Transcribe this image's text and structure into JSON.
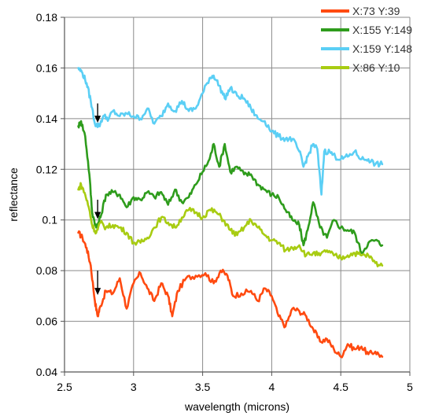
{
  "chart_data": {
    "type": "line",
    "title": "",
    "xlabel": "wavelength (microns)",
    "ylabel": "reflectance",
    "xlim": [
      2.5,
      5
    ],
    "ylim": [
      0.04,
      0.18
    ],
    "x_ticks": [
      "2.5",
      "3",
      "3.5",
      "4",
      "4.5",
      "5"
    ],
    "y_ticks": [
      "0.04",
      "0.06",
      "0.08",
      "0.1",
      "0.12",
      "0.14",
      "0.16",
      "0.18"
    ],
    "x_tick_values": [
      2.5,
      3,
      3.5,
      4,
      4.5,
      5
    ],
    "y_tick_values": [
      0.04,
      0.06,
      0.08,
      0.1,
      0.12,
      0.14,
      0.16,
      0.18
    ],
    "grid": true,
    "legend_position": "top-right",
    "series": [
      {
        "name": "X:73 Y:39",
        "color": "#ff4a10",
        "points": [
          [
            2.6,
            0.095
          ],
          [
            2.63,
            0.093
          ],
          [
            2.66,
            0.089
          ],
          [
            2.69,
            0.082
          ],
          [
            2.72,
            0.068
          ],
          [
            2.74,
            0.062
          ],
          [
            2.76,
            0.066
          ],
          [
            2.8,
            0.072
          ],
          [
            2.85,
            0.071
          ],
          [
            2.9,
            0.077
          ],
          [
            2.95,
            0.065
          ],
          [
            3.0,
            0.075
          ],
          [
            3.05,
            0.079
          ],
          [
            3.1,
            0.073
          ],
          [
            3.15,
            0.068
          ],
          [
            3.2,
            0.075
          ],
          [
            3.25,
            0.07
          ],
          [
            3.28,
            0.062
          ],
          [
            3.32,
            0.072
          ],
          [
            3.38,
            0.077
          ],
          [
            3.45,
            0.078
          ],
          [
            3.52,
            0.079
          ],
          [
            3.58,
            0.075
          ],
          [
            3.63,
            0.08
          ],
          [
            3.68,
            0.078
          ],
          [
            3.72,
            0.07
          ],
          [
            3.78,
            0.071
          ],
          [
            3.85,
            0.072
          ],
          [
            3.9,
            0.068
          ],
          [
            3.95,
            0.073
          ],
          [
            4.0,
            0.07
          ],
          [
            4.05,
            0.062
          ],
          [
            4.1,
            0.058
          ],
          [
            4.15,
            0.065
          ],
          [
            4.2,
            0.064
          ],
          [
            4.25,
            0.062
          ],
          [
            4.3,
            0.057
          ],
          [
            4.35,
            0.052
          ],
          [
            4.4,
            0.053
          ],
          [
            4.45,
            0.049
          ],
          [
            4.5,
            0.046
          ],
          [
            4.55,
            0.051
          ],
          [
            4.6,
            0.049
          ],
          [
            4.65,
            0.05
          ],
          [
            4.7,
            0.047
          ],
          [
            4.75,
            0.048
          ],
          [
            4.8,
            0.046
          ]
        ]
      },
      {
        "name": "X:155 Y:149",
        "color": "#2e9c1c",
        "points": [
          [
            2.6,
            0.137
          ],
          [
            2.62,
            0.139
          ],
          [
            2.65,
            0.133
          ],
          [
            2.68,
            0.118
          ],
          [
            2.7,
            0.103
          ],
          [
            2.73,
            0.097
          ],
          [
            2.76,
            0.101
          ],
          [
            2.8,
            0.11
          ],
          [
            2.85,
            0.111
          ],
          [
            2.9,
            0.11
          ],
          [
            2.95,
            0.105
          ],
          [
            3.0,
            0.109
          ],
          [
            3.05,
            0.108
          ],
          [
            3.1,
            0.111
          ],
          [
            3.15,
            0.109
          ],
          [
            3.2,
            0.111
          ],
          [
            3.25,
            0.106
          ],
          [
            3.3,
            0.112
          ],
          [
            3.35,
            0.107
          ],
          [
            3.4,
            0.109
          ],
          [
            3.45,
            0.114
          ],
          [
            3.5,
            0.119
          ],
          [
            3.55,
            0.124
          ],
          [
            3.58,
            0.13
          ],
          [
            3.62,
            0.121
          ],
          [
            3.66,
            0.13
          ],
          [
            3.7,
            0.119
          ],
          [
            3.75,
            0.121
          ],
          [
            3.8,
            0.118
          ],
          [
            3.85,
            0.118
          ],
          [
            3.9,
            0.114
          ],
          [
            3.95,
            0.112
          ],
          [
            4.0,
            0.11
          ],
          [
            4.05,
            0.109
          ],
          [
            4.1,
            0.104
          ],
          [
            4.15,
            0.1
          ],
          [
            4.2,
            0.098
          ],
          [
            4.23,
            0.09
          ],
          [
            4.26,
            0.096
          ],
          [
            4.3,
            0.107
          ],
          [
            4.35,
            0.097
          ],
          [
            4.4,
            0.093
          ],
          [
            4.45,
            0.1
          ],
          [
            4.5,
            0.097
          ],
          [
            4.55,
            0.096
          ],
          [
            4.6,
            0.095
          ],
          [
            4.65,
            0.087
          ],
          [
            4.7,
            0.091
          ],
          [
            4.75,
            0.092
          ],
          [
            4.8,
            0.09
          ]
        ]
      },
      {
        "name": "X:159 Y:148",
        "color": "#5bcff5",
        "points": [
          [
            2.6,
            0.16
          ],
          [
            2.63,
            0.158
          ],
          [
            2.66,
            0.154
          ],
          [
            2.69,
            0.147
          ],
          [
            2.72,
            0.138
          ],
          [
            2.75,
            0.137
          ],
          [
            2.78,
            0.141
          ],
          [
            2.82,
            0.14
          ],
          [
            2.85,
            0.143
          ],
          [
            2.9,
            0.141
          ],
          [
            2.95,
            0.142
          ],
          [
            3.0,
            0.141
          ],
          [
            3.05,
            0.14
          ],
          [
            3.1,
            0.144
          ],
          [
            3.15,
            0.138
          ],
          [
            3.2,
            0.141
          ],
          [
            3.25,
            0.146
          ],
          [
            3.3,
            0.143
          ],
          [
            3.35,
            0.147
          ],
          [
            3.4,
            0.143
          ],
          [
            3.45,
            0.144
          ],
          [
            3.5,
            0.15
          ],
          [
            3.55,
            0.156
          ],
          [
            3.58,
            0.157
          ],
          [
            3.62,
            0.153
          ],
          [
            3.66,
            0.148
          ],
          [
            3.7,
            0.152
          ],
          [
            3.75,
            0.149
          ],
          [
            3.8,
            0.148
          ],
          [
            3.85,
            0.144
          ],
          [
            3.9,
            0.14
          ],
          [
            3.95,
            0.139
          ],
          [
            4.0,
            0.135
          ],
          [
            4.05,
            0.133
          ],
          [
            4.1,
            0.132
          ],
          [
            4.15,
            0.132
          ],
          [
            4.2,
            0.127
          ],
          [
            4.23,
            0.121
          ],
          [
            4.26,
            0.125
          ],
          [
            4.3,
            0.13
          ],
          [
            4.33,
            0.128
          ],
          [
            4.36,
            0.11
          ],
          [
            4.38,
            0.127
          ],
          [
            4.42,
            0.127
          ],
          [
            4.46,
            0.125
          ],
          [
            4.5,
            0.124
          ],
          [
            4.55,
            0.125
          ],
          [
            4.6,
            0.127
          ],
          [
            4.65,
            0.124
          ],
          [
            4.7,
            0.124
          ],
          [
            4.75,
            0.122
          ],
          [
            4.8,
            0.122
          ]
        ]
      },
      {
        "name": "X:86 Y:10",
        "color": "#a8cc12",
        "points": [
          [
            2.6,
            0.112
          ],
          [
            2.62,
            0.114
          ],
          [
            2.65,
            0.11
          ],
          [
            2.68,
            0.104
          ],
          [
            2.7,
            0.098
          ],
          [
            2.73,
            0.095
          ],
          [
            2.76,
            0.099
          ],
          [
            2.8,
            0.097
          ],
          [
            2.85,
            0.098
          ],
          [
            2.9,
            0.097
          ],
          [
            2.95,
            0.095
          ],
          [
            3.0,
            0.091
          ],
          [
            3.05,
            0.091
          ],
          [
            3.1,
            0.093
          ],
          [
            3.15,
            0.097
          ],
          [
            3.2,
            0.101
          ],
          [
            3.25,
            0.099
          ],
          [
            3.3,
            0.097
          ],
          [
            3.35,
            0.101
          ],
          [
            3.4,
            0.104
          ],
          [
            3.45,
            0.103
          ],
          [
            3.5,
            0.101
          ],
          [
            3.55,
            0.104
          ],
          [
            3.6,
            0.103
          ],
          [
            3.65,
            0.1
          ],
          [
            3.7,
            0.096
          ],
          [
            3.75,
            0.094
          ],
          [
            3.8,
            0.097
          ],
          [
            3.85,
            0.1
          ],
          [
            3.9,
            0.097
          ],
          [
            3.95,
            0.094
          ],
          [
            4.0,
            0.092
          ],
          [
            4.05,
            0.091
          ],
          [
            4.1,
            0.088
          ],
          [
            4.15,
            0.089
          ],
          [
            4.2,
            0.09
          ],
          [
            4.25,
            0.086
          ],
          [
            4.3,
            0.087
          ],
          [
            4.35,
            0.086
          ],
          [
            4.4,
            0.088
          ],
          [
            4.45,
            0.086
          ],
          [
            4.5,
            0.085
          ],
          [
            4.55,
            0.086
          ],
          [
            4.6,
            0.087
          ],
          [
            4.65,
            0.086
          ],
          [
            4.7,
            0.086
          ],
          [
            4.75,
            0.083
          ],
          [
            4.8,
            0.082
          ]
        ]
      }
    ],
    "annotations": [
      {
        "type": "arrow",
        "x": 2.74,
        "y_from": 0.146,
        "y_to": 0.139,
        "color": "#000000"
      },
      {
        "type": "arrow",
        "x": 2.74,
        "y_from": 0.108,
        "y_to": 0.101,
        "color": "#000000"
      },
      {
        "type": "arrow",
        "x": 2.74,
        "y_from": 0.08,
        "y_to": 0.071,
        "color": "#000000"
      }
    ],
    "colors": {
      "grid": "#8a8a8a",
      "axis": "#555555",
      "background": "#ffffff"
    }
  }
}
